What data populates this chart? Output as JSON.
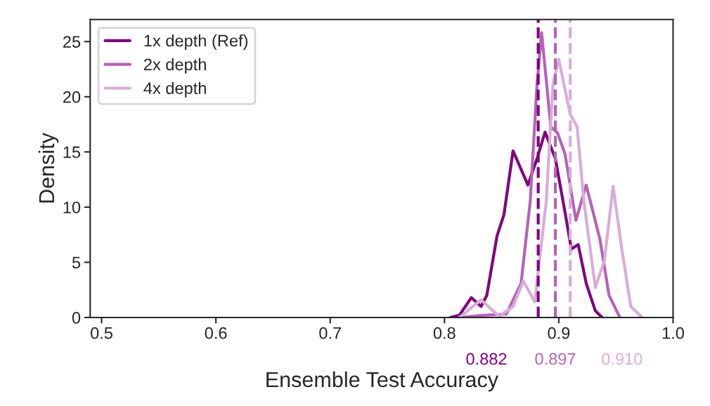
{
  "chart_data": {
    "type": "line",
    "xlabel": "Ensemble Test Accuracy",
    "ylabel": "Density",
    "xlim": [
      0.49,
      1.0
    ],
    "xticks": [
      {
        "value": 0.5,
        "label": "0.5"
      },
      {
        "value": 0.6,
        "label": "0.6"
      },
      {
        "value": 0.7,
        "label": "0.7"
      },
      {
        "value": 0.8,
        "label": "0.8"
      },
      {
        "value": 0.9,
        "label": "0.9"
      },
      {
        "value": 1.0,
        "label": "1.0"
      }
    ],
    "ylim": [
      0,
      27
    ],
    "yticks": [
      0,
      5,
      10,
      15,
      20,
      25
    ],
    "grid": false,
    "legend": "top left",
    "marker": "none",
    "line_style": "solid",
    "series": [
      {
        "name": "1x depth (Ref)",
        "color": "#800080",
        "x": [
          0.805,
          0.813,
          0.8235,
          0.832,
          0.837,
          0.846,
          0.852,
          0.86,
          0.873,
          0.881,
          0.888,
          0.897,
          0.9055,
          0.911,
          0.917,
          0.924,
          0.932,
          0.938
        ],
        "values": [
          0,
          0.2,
          1.8,
          1.0,
          2.0,
          7.4,
          9.3,
          15.1,
          12.0,
          14.4,
          16.8,
          14.4,
          9.5,
          6.2,
          6.6,
          3.1,
          0.6,
          0
        ]
      },
      {
        "name": "2x depth",
        "color": "#b463b8",
        "x": [
          0.813,
          0.834,
          0.854,
          0.867,
          0.875,
          0.881,
          0.885,
          0.893,
          0.899,
          0.9055,
          0.915,
          0.924,
          0.936,
          0.944,
          0.953
        ],
        "values": [
          0,
          0.2,
          0.3,
          3.1,
          10.5,
          21.2,
          25.8,
          17.3,
          16.7,
          14.8,
          8.8,
          12.0,
          7.1,
          2.0,
          0.1
        ]
      },
      {
        "name": "4x depth",
        "color": "#d9acd9",
        "x": [
          0.813,
          0.832,
          0.848,
          0.86,
          0.869,
          0.879,
          0.889,
          0.895,
          0.9,
          0.91,
          0.916,
          0.922,
          0.932,
          0.94,
          0.9475,
          0.955,
          0.963,
          0.973
        ],
        "values": [
          0,
          1.6,
          0.1,
          1.0,
          3.3,
          1.4,
          10.5,
          21.2,
          23.4,
          18.4,
          17.3,
          10.5,
          2.7,
          5.2,
          11.9,
          6.3,
          1.0,
          0
        ]
      }
    ],
    "ref_lines": [
      {
        "axis": "x",
        "value": 0.882,
        "label": "0.882",
        "color": "#800080",
        "line_style": "dashed"
      },
      {
        "axis": "x",
        "value": 0.897,
        "label": "0.897",
        "color": "#b463b8",
        "line_style": "dashed"
      },
      {
        "axis": "x",
        "value": 0.91,
        "label": "0.910",
        "color": "#d9acd9",
        "line_style": "dashed"
      }
    ]
  }
}
